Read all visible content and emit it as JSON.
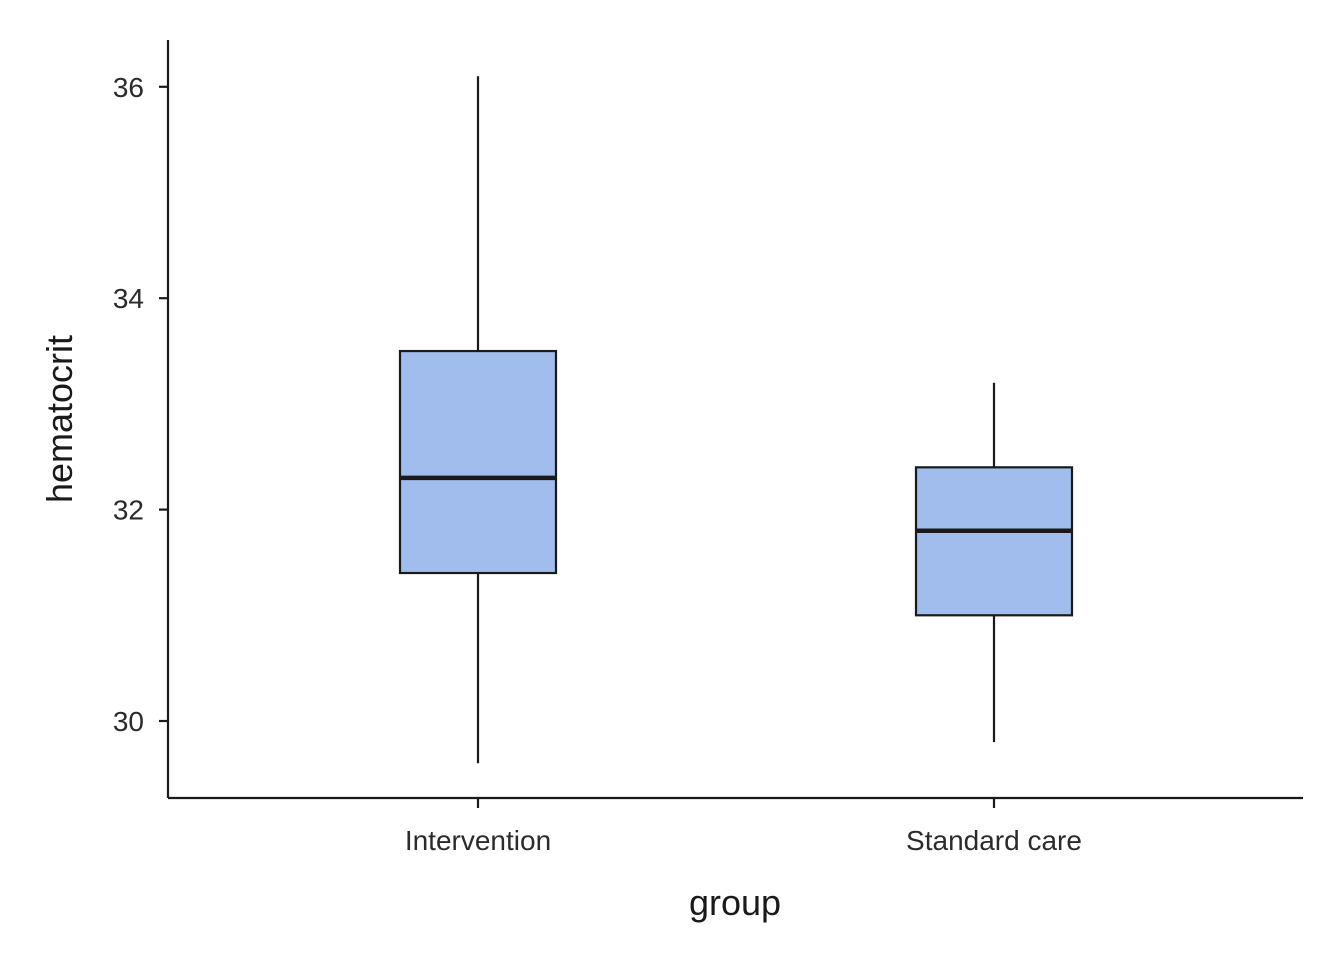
{
  "chart_data": {
    "type": "boxplot",
    "title": "",
    "xlabel": "group",
    "ylabel": "hematocrit",
    "ylim": [
      29.3,
      36.4
    ],
    "yticks": [
      30,
      32,
      34,
      36
    ],
    "categories": [
      "Intervention",
      "Standard care"
    ],
    "boxes": [
      {
        "category": "Intervention",
        "min": 29.6,
        "q1": 31.4,
        "median": 32.3,
        "q3": 33.5,
        "max": 36.1
      },
      {
        "category": "Standard care",
        "min": 29.8,
        "q1": 31.0,
        "median": 31.8,
        "q3": 32.4,
        "max": 33.2
      }
    ],
    "fill_color": "#a0bdee",
    "line_color": "#1a1a1a",
    "grid": false,
    "legend": "none"
  }
}
